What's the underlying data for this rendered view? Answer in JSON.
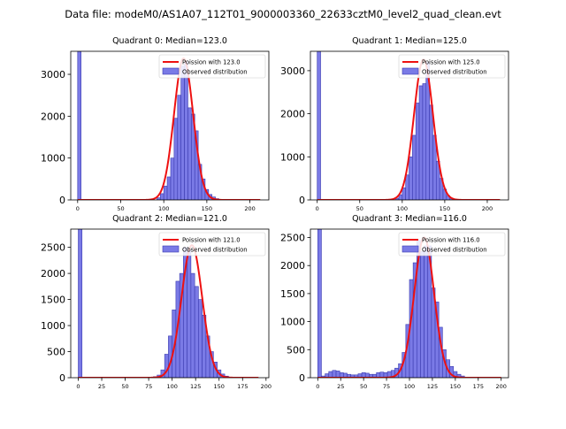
{
  "figure_title": "Data file: modeM0/AS1A07_112T01_9000003360_22633cztM0_level2_quad_clean.evt",
  "chart_data": [
    {
      "type": "bar",
      "title": "Quadrant 0: Median=123.0",
      "xlim": [
        -8,
        222
      ],
      "ylim": [
        0,
        3550
      ],
      "xticks": [
        0,
        50,
        100,
        150,
        200
      ],
      "yticks": [
        0,
        1000,
        2000,
        3000
      ],
      "bin_width": 4,
      "bins": [
        {
          "x": 0,
          "y": 3550
        },
        {
          "x": 92,
          "y": 50
        },
        {
          "x": 96,
          "y": 150
        },
        {
          "x": 100,
          "y": 330
        },
        {
          "x": 104,
          "y": 550
        },
        {
          "x": 108,
          "y": 1000
        },
        {
          "x": 112,
          "y": 1950
        },
        {
          "x": 116,
          "y": 2500
        },
        {
          "x": 120,
          "y": 3200
        },
        {
          "x": 124,
          "y": 3300
        },
        {
          "x": 128,
          "y": 2200
        },
        {
          "x": 132,
          "y": 2050
        },
        {
          "x": 136,
          "y": 1650
        },
        {
          "x": 140,
          "y": 850
        },
        {
          "x": 144,
          "y": 500
        },
        {
          "x": 148,
          "y": 250
        },
        {
          "x": 152,
          "y": 130
        },
        {
          "x": 156,
          "y": 70
        },
        {
          "x": 160,
          "y": 30
        },
        {
          "x": 164,
          "y": 10
        }
      ],
      "poisson_mean": 123.0,
      "poisson_peak": 3380,
      "poisson_sigma": 11.1,
      "fit_range": [
        0,
        212
      ],
      "legend": [
        "Poission with 123.0",
        "Observed distribution"
      ],
      "legend_loc": "upper right"
    },
    {
      "type": "bar",
      "title": "Quadrant 1: Median=125.0",
      "xlim": [
        -8,
        225
      ],
      "ylim": [
        0,
        3450
      ],
      "xticks": [
        0,
        50,
        100,
        150,
        200
      ],
      "yticks": [
        0,
        1000,
        2000,
        3000
      ],
      "bin_width": 4,
      "bins": [
        {
          "x": 0,
          "y": 3450
        },
        {
          "x": 92,
          "y": 40
        },
        {
          "x": 96,
          "y": 120
        },
        {
          "x": 100,
          "y": 280
        },
        {
          "x": 104,
          "y": 580
        },
        {
          "x": 108,
          "y": 1000
        },
        {
          "x": 112,
          "y": 1500
        },
        {
          "x": 116,
          "y": 2250
        },
        {
          "x": 120,
          "y": 2650
        },
        {
          "x": 124,
          "y": 2700
        },
        {
          "x": 128,
          "y": 3200
        },
        {
          "x": 132,
          "y": 2200
        },
        {
          "x": 136,
          "y": 1500
        },
        {
          "x": 140,
          "y": 900
        },
        {
          "x": 144,
          "y": 500
        },
        {
          "x": 148,
          "y": 250
        },
        {
          "x": 152,
          "y": 100
        },
        {
          "x": 156,
          "y": 40
        },
        {
          "x": 160,
          "y": 15
        }
      ],
      "poisson_mean": 125.0,
      "poisson_peak": 3260,
      "poisson_sigma": 11.2,
      "fit_range": [
        0,
        215
      ],
      "legend": [
        "Poission with 125.0",
        "Observed distribution"
      ],
      "legend_loc": "upper right"
    },
    {
      "type": "bar",
      "title": "Quadrant 2: Median=121.0",
      "xlim": [
        -8,
        203
      ],
      "ylim": [
        0,
        2850
      ],
      "xticks": [
        0,
        25,
        50,
        75,
        100,
        125,
        150,
        175,
        200
      ],
      "yticks": [
        0,
        500,
        1000,
        1500,
        2000,
        2500
      ],
      "bin_width": 4,
      "bins": [
        {
          "x": 0,
          "y": 2850
        },
        {
          "x": 80,
          "y": 20
        },
        {
          "x": 84,
          "y": 50
        },
        {
          "x": 88,
          "y": 150
        },
        {
          "x": 92,
          "y": 450
        },
        {
          "x": 96,
          "y": 800
        },
        {
          "x": 100,
          "y": 1300
        },
        {
          "x": 104,
          "y": 1850
        },
        {
          "x": 108,
          "y": 2000
        },
        {
          "x": 112,
          "y": 2500
        },
        {
          "x": 116,
          "y": 2450
        },
        {
          "x": 120,
          "y": 2000
        },
        {
          "x": 124,
          "y": 1750
        },
        {
          "x": 128,
          "y": 1500
        },
        {
          "x": 132,
          "y": 1200
        },
        {
          "x": 136,
          "y": 800
        },
        {
          "x": 140,
          "y": 500
        },
        {
          "x": 144,
          "y": 300
        },
        {
          "x": 148,
          "y": 150
        },
        {
          "x": 152,
          "y": 70
        },
        {
          "x": 156,
          "y": 30
        }
      ],
      "poisson_mean": 121.0,
      "poisson_peak": 2540,
      "poisson_sigma": 11.0,
      "fit_range": [
        0,
        192
      ],
      "legend": [
        "Poission with 121.0",
        "Observed distribution"
      ],
      "legend_loc": "upper right"
    },
    {
      "type": "bar",
      "title": "Quadrant 3: Median=116.0",
      "xlim": [
        -8,
        208
      ],
      "ylim": [
        0,
        2650
      ],
      "xticks": [
        0,
        25,
        50,
        75,
        100,
        125,
        150,
        175,
        200
      ],
      "yticks": [
        0,
        500,
        1000,
        1500,
        2000,
        2500
      ],
      "bin_width": 4,
      "bins": [
        {
          "x": 0,
          "y": 2650
        },
        {
          "x": 4,
          "y": 30
        },
        {
          "x": 8,
          "y": 70
        },
        {
          "x": 12,
          "y": 110
        },
        {
          "x": 16,
          "y": 130
        },
        {
          "x": 20,
          "y": 120
        },
        {
          "x": 24,
          "y": 90
        },
        {
          "x": 28,
          "y": 80
        },
        {
          "x": 32,
          "y": 60
        },
        {
          "x": 36,
          "y": 50
        },
        {
          "x": 40,
          "y": 50
        },
        {
          "x": 44,
          "y": 70
        },
        {
          "x": 48,
          "y": 90
        },
        {
          "x": 52,
          "y": 80
        },
        {
          "x": 56,
          "y": 60
        },
        {
          "x": 60,
          "y": 60
        },
        {
          "x": 64,
          "y": 90
        },
        {
          "x": 68,
          "y": 100
        },
        {
          "x": 72,
          "y": 90
        },
        {
          "x": 76,
          "y": 110
        },
        {
          "x": 80,
          "y": 130
        },
        {
          "x": 84,
          "y": 170
        },
        {
          "x": 88,
          "y": 250
        },
        {
          "x": 92,
          "y": 450
        },
        {
          "x": 96,
          "y": 950
        },
        {
          "x": 100,
          "y": 1750
        },
        {
          "x": 104,
          "y": 2050
        },
        {
          "x": 108,
          "y": 2450
        },
        {
          "x": 112,
          "y": 2250
        },
        {
          "x": 116,
          "y": 2350
        },
        {
          "x": 120,
          "y": 2350
        },
        {
          "x": 124,
          "y": 1600
        },
        {
          "x": 128,
          "y": 1350
        },
        {
          "x": 132,
          "y": 900
        },
        {
          "x": 136,
          "y": 500
        },
        {
          "x": 140,
          "y": 320
        },
        {
          "x": 144,
          "y": 200
        },
        {
          "x": 148,
          "y": 110
        },
        {
          "x": 152,
          "y": 60
        },
        {
          "x": 156,
          "y": 30
        }
      ],
      "poisson_mean": 116.0,
      "poisson_peak": 2500,
      "poisson_sigma": 10.8,
      "fit_range": [
        0,
        200
      ],
      "legend": [
        "Poission with 116.0",
        "Observed distribution"
      ],
      "legend_loc": "upper right"
    }
  ]
}
